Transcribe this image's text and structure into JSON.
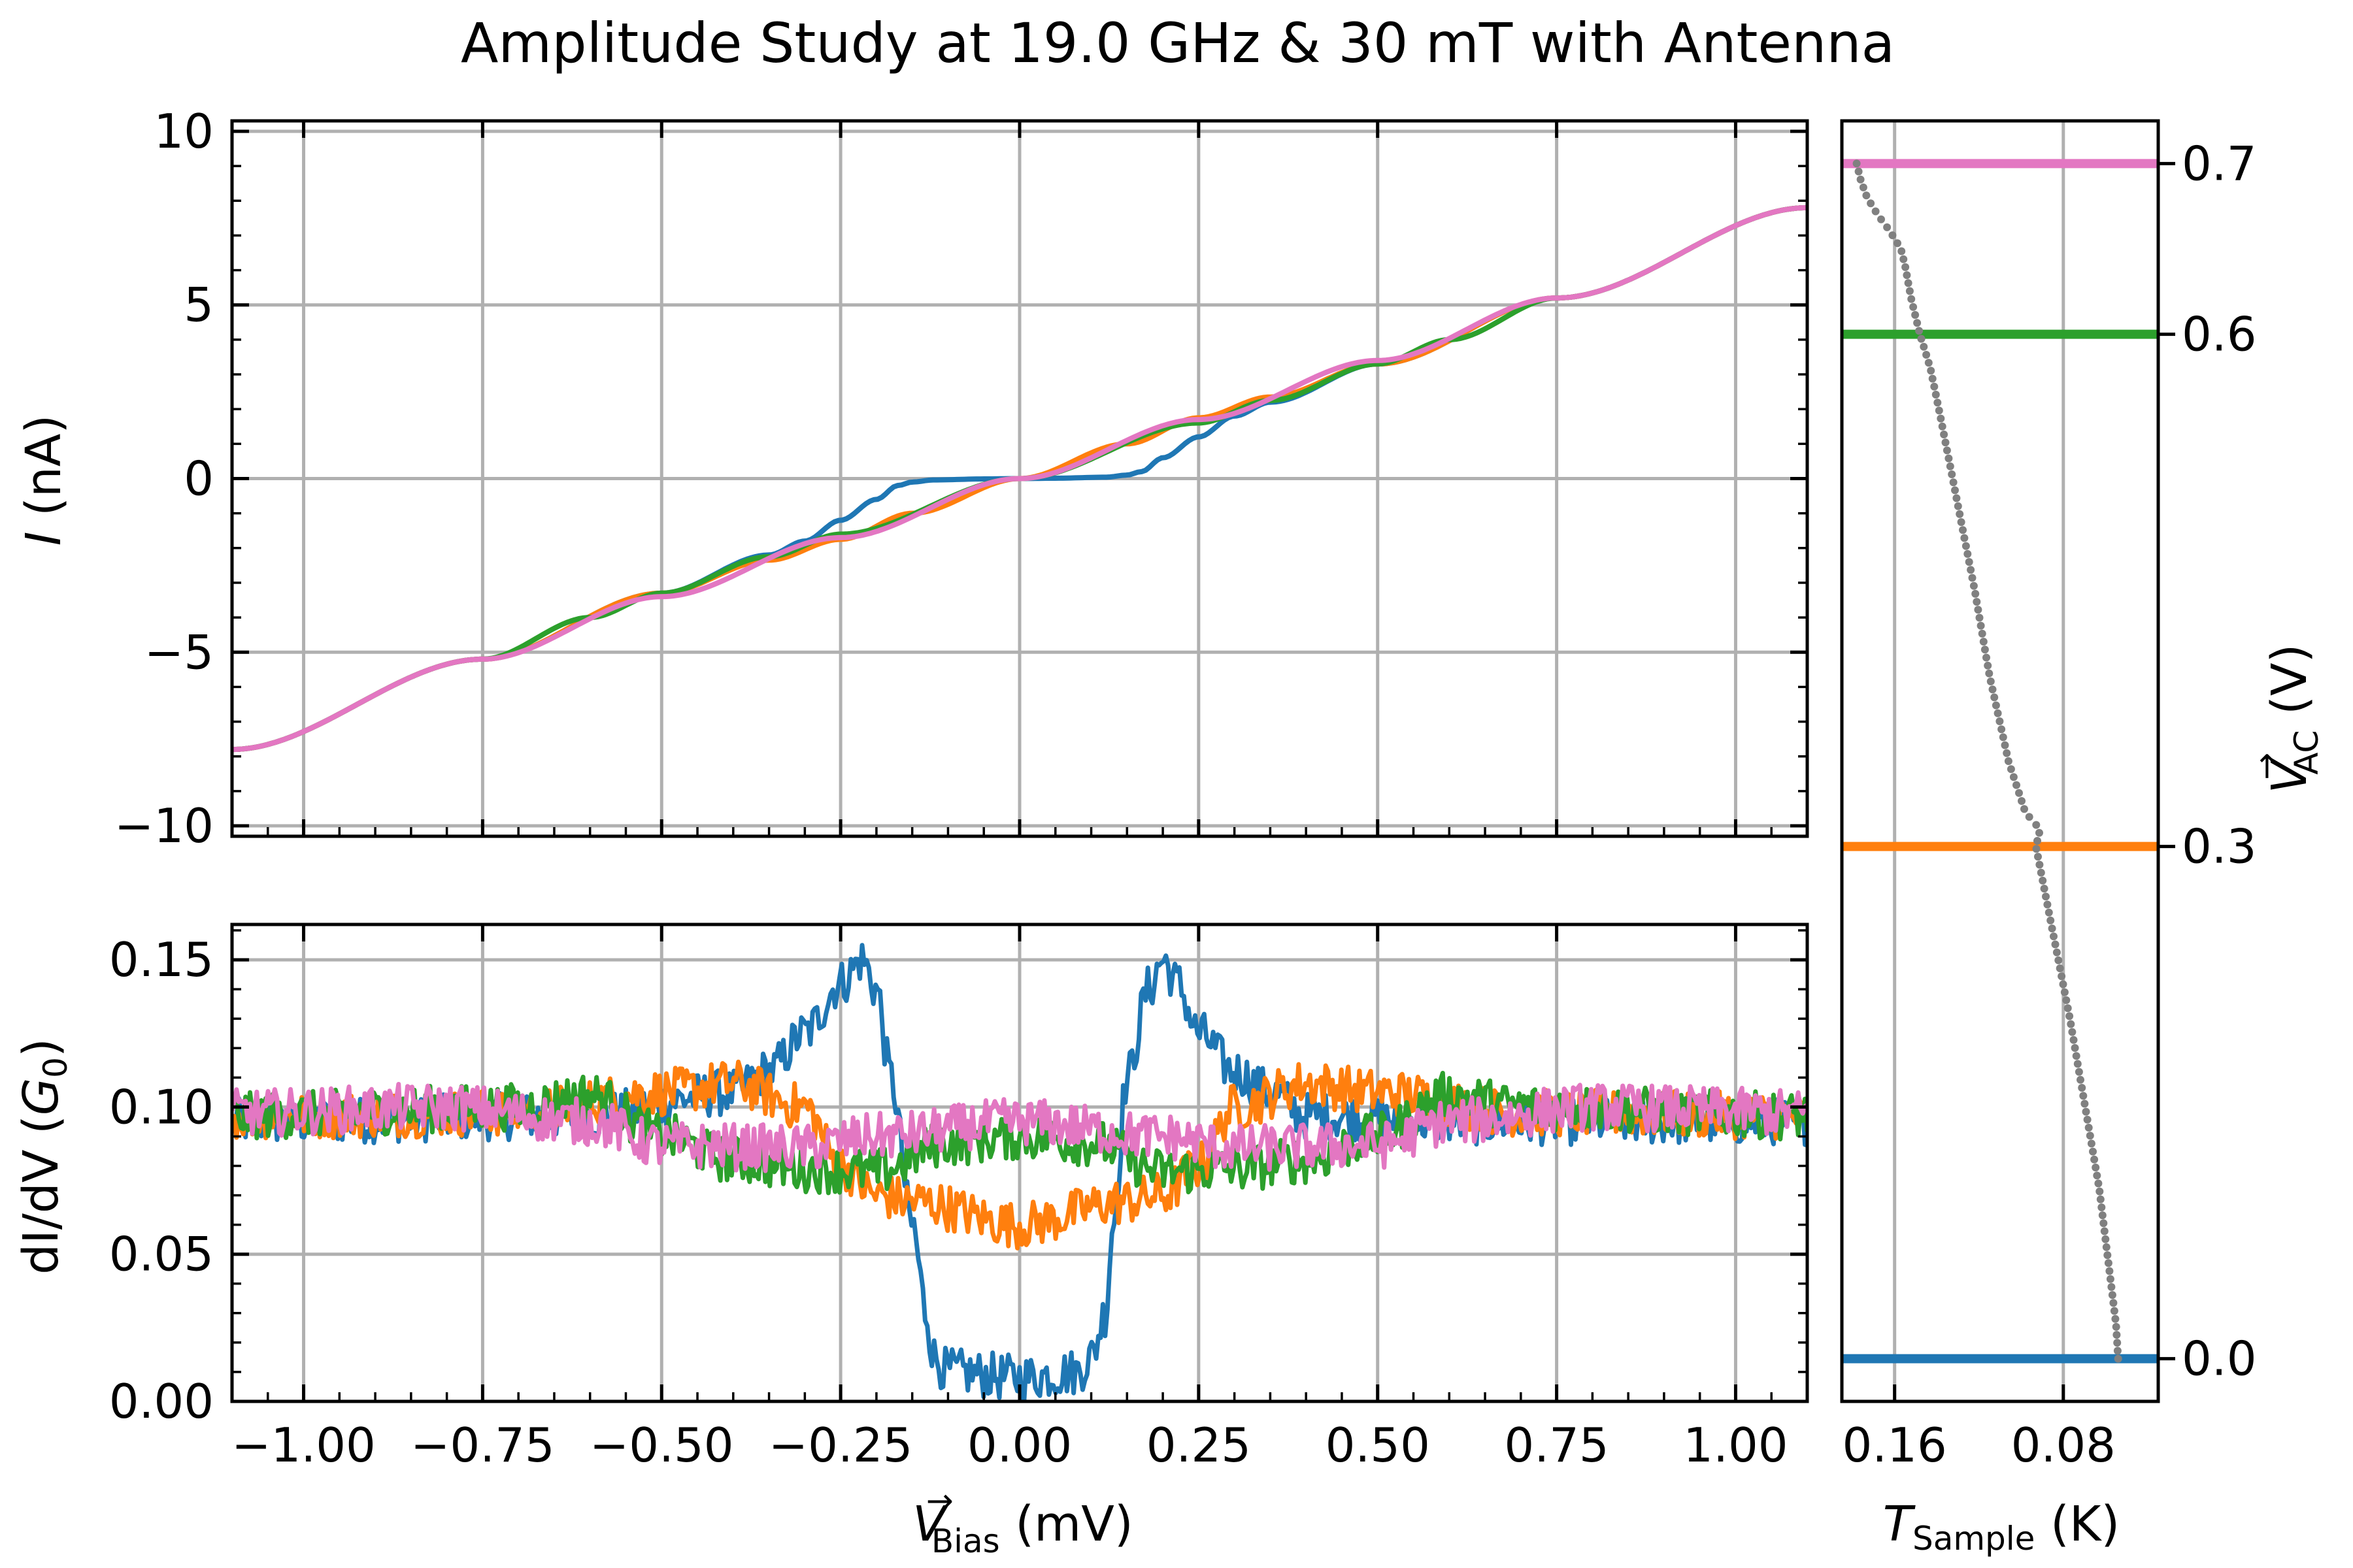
{
  "title": "Amplitude Study at 19.0 GHz & 30 mT with Antenna",
  "colors": {
    "c0": "#1f77b4",
    "c1": "#ff7f0e",
    "c2": "#2ca02c",
    "c3": "#e377c2",
    "temperature": "#808080",
    "grid": "#b0b0b0"
  },
  "labels": {
    "iv_ylabel_var": "I",
    "iv_ylabel_unit": " (nA)",
    "didv_ylabel_pre": "dI/dV (",
    "didv_ylabel_var": "G",
    "didv_ylabel_sub": "0",
    "didv_ylabel_post": ")",
    "bias_var": "V",
    "bias_arrow": "→",
    "bias_sub": "Bias",
    "bias_unit": " (mV)",
    "temp_var": "T",
    "temp_sub": "Sample",
    "temp_unit": " (K)",
    "vac_var": "V",
    "vac_arrow": "→",
    "vac_sub": "AC",
    "vac_unit": " (V)"
  },
  "chart_data": [
    {
      "type": "line",
      "panel": "I-V",
      "xlim": [
        -1.1,
        1.1
      ],
      "ylim": [
        -10.3,
        10.3
      ],
      "grid": true,
      "xticks": [
        -1.0,
        -0.75,
        -0.5,
        -0.25,
        0.0,
        0.25,
        0.5,
        0.75,
        1.0
      ],
      "yticks": [
        {
          "value": -10,
          "label": "−10"
        },
        {
          "value": -5,
          "label": "−5"
        },
        {
          "value": 0,
          "label": "0"
        },
        {
          "value": 5,
          "label": "5"
        },
        {
          "value": 10,
          "label": "10"
        }
      ],
      "series": [
        {
          "vac": 0.0,
          "x": [
            -1.1,
            -0.75,
            -0.5,
            -0.35,
            -0.3,
            -0.25,
            -0.2,
            -0.17,
            -0.15,
            -0.12,
            -0.05,
            0.0,
            0.05,
            0.12,
            0.15,
            0.17,
            0.2,
            0.25,
            0.3,
            0.35,
            0.5,
            0.75,
            1.1
          ],
          "y": [
            -7.8,
            -5.2,
            -3.3,
            -2.2,
            -1.8,
            -1.2,
            -0.6,
            -0.2,
            -0.1,
            -0.04,
            -0.01,
            0.0,
            0.01,
            0.04,
            0.1,
            0.2,
            0.6,
            1.2,
            1.8,
            2.2,
            3.3,
            5.2,
            7.8
          ]
        },
        {
          "vac": 0.3,
          "x": [
            -1.1,
            -0.75,
            -0.5,
            -0.35,
            -0.25,
            -0.15,
            0.0,
            0.15,
            0.25,
            0.35,
            0.5,
            0.75,
            1.1
          ],
          "y": [
            -7.8,
            -5.2,
            -3.3,
            -2.35,
            -1.75,
            -1.0,
            0.0,
            1.0,
            1.75,
            2.35,
            3.3,
            5.2,
            7.8
          ]
        },
        {
          "vac": 0.6,
          "x": [
            -1.1,
            -0.75,
            -0.6,
            -0.5,
            -0.35,
            -0.25,
            0.0,
            0.25,
            0.35,
            0.5,
            0.6,
            0.75,
            1.1
          ],
          "y": [
            -7.8,
            -5.2,
            -4.0,
            -3.3,
            -2.25,
            -1.6,
            0.0,
            1.6,
            2.25,
            3.3,
            4.0,
            5.2,
            7.8
          ]
        },
        {
          "vac": 0.7,
          "x": [
            -1.1,
            -0.75,
            -0.5,
            -0.25,
            0.0,
            0.25,
            0.5,
            0.75,
            1.1
          ],
          "y": [
            -7.8,
            -5.2,
            -3.4,
            -1.7,
            0.0,
            1.7,
            3.4,
            5.2,
            7.8
          ]
        }
      ]
    },
    {
      "type": "line",
      "panel": "dI/dV",
      "xlim": [
        -1.1,
        1.1
      ],
      "ylim": [
        0.0,
        0.162
      ],
      "grid": true,
      "xticks": [
        {
          "value": -1.0,
          "label": "−1.00"
        },
        {
          "value": -0.75,
          "label": "−0.75"
        },
        {
          "value": -0.5,
          "label": "−0.50"
        },
        {
          "value": -0.25,
          "label": "−0.25"
        },
        {
          "value": 0.0,
          "label": "0.00"
        },
        {
          "value": 0.25,
          "label": "0.25"
        },
        {
          "value": 0.5,
          "label": "0.50"
        },
        {
          "value": 0.75,
          "label": "0.75"
        },
        {
          "value": 1.0,
          "label": "1.00"
        }
      ],
      "yticks": [
        {
          "value": 0.0,
          "label": "0.00"
        },
        {
          "value": 0.05,
          "label": "0.05"
        },
        {
          "value": 0.1,
          "label": "0.10"
        },
        {
          "value": 0.15,
          "label": "0.15"
        }
      ],
      "series": [
        {
          "vac": 0.0,
          "x": [
            -1.1,
            -0.6,
            -0.4,
            -0.35,
            -0.3,
            -0.25,
            -0.22,
            -0.2,
            -0.18,
            -0.15,
            -0.13,
            -0.12,
            -0.1,
            0.0,
            0.08,
            0.1,
            0.12,
            0.13,
            0.15,
            0.18,
            0.2,
            0.22,
            0.25,
            0.3,
            0.35,
            0.4,
            0.6,
            1.1
          ],
          "y": [
            0.095,
            0.097,
            0.105,
            0.112,
            0.125,
            0.142,
            0.15,
            0.14,
            0.11,
            0.06,
            0.03,
            0.015,
            0.01,
            0.008,
            0.01,
            0.015,
            0.03,
            0.06,
            0.11,
            0.14,
            0.15,
            0.142,
            0.125,
            0.112,
            0.105,
            0.097,
            0.095,
            0.095
          ]
        },
        {
          "vac": 0.3,
          "x": [
            -1.1,
            -0.7,
            -0.5,
            -0.4,
            -0.3,
            -0.25,
            -0.2,
            -0.15,
            0.0,
            0.15,
            0.2,
            0.25,
            0.3,
            0.4,
            0.5,
            0.7,
            1.1
          ],
          "y": [
            0.097,
            0.098,
            0.105,
            0.108,
            0.1,
            0.08,
            0.07,
            0.068,
            0.06,
            0.068,
            0.07,
            0.08,
            0.1,
            0.108,
            0.105,
            0.098,
            0.097
          ]
        },
        {
          "vac": 0.6,
          "x": [
            -1.1,
            -0.7,
            -0.6,
            -0.5,
            -0.4,
            -0.3,
            -0.2,
            -0.1,
            0.0,
            0.1,
            0.2,
            0.3,
            0.4,
            0.5,
            0.6,
            0.7,
            1.1
          ],
          "y": [
            0.097,
            0.1,
            0.104,
            0.09,
            0.082,
            0.079,
            0.078,
            0.088,
            0.09,
            0.088,
            0.078,
            0.079,
            0.082,
            0.09,
            0.104,
            0.1,
            0.097
          ]
        },
        {
          "vac": 0.7,
          "x": [
            -1.1,
            -0.8,
            -0.6,
            -0.5,
            -0.3,
            -0.2,
            0.0,
            0.2,
            0.3,
            0.5,
            0.6,
            0.8,
            1.1
          ],
          "y": [
            0.098,
            0.1,
            0.095,
            0.087,
            0.086,
            0.09,
            0.095,
            0.09,
            0.086,
            0.087,
            0.095,
            0.1,
            0.098
          ]
        }
      ]
    },
    {
      "type": "scatter",
      "panel": "temperature",
      "xlabel_direction": "reversed",
      "xlim": [
        0.185,
        0.035
      ],
      "ylim": [
        -0.025,
        0.725
      ],
      "grid": true,
      "xticks": [
        {
          "value": 0.16,
          "label": "0.16"
        },
        {
          "value": 0.08,
          "label": "0.08"
        }
      ],
      "right_yticks": [
        {
          "value": 0.0,
          "label": "0.0"
        },
        {
          "value": 0.3,
          "label": "0.3"
        },
        {
          "value": 0.6,
          "label": "0.6"
        },
        {
          "value": 0.7,
          "label": "0.7"
        }
      ],
      "hlines": [
        {
          "vac": 0.0,
          "color": "c0"
        },
        {
          "vac": 0.3,
          "color": "c1"
        },
        {
          "vac": 0.6,
          "color": "c2"
        },
        {
          "vac": 0.7,
          "color": "c3"
        }
      ],
      "temperature_curve": {
        "v": [
          0.7,
          0.69,
          0.68,
          0.67,
          0.66,
          0.65,
          0.64,
          0.62,
          0.6,
          0.58,
          0.55,
          0.5,
          0.45,
          0.4,
          0.35,
          0.32,
          0.31,
          0.3,
          0.25,
          0.2,
          0.15,
          0.1,
          0.05,
          0.02,
          0.0
        ],
        "t": [
          0.178,
          0.176,
          0.173,
          0.168,
          0.162,
          0.157,
          0.155,
          0.152,
          0.148,
          0.143,
          0.138,
          0.13,
          0.122,
          0.115,
          0.106,
          0.098,
          0.091,
          0.093,
          0.085,
          0.077,
          0.07,
          0.063,
          0.058,
          0.055,
          0.054
        ]
      }
    }
  ]
}
